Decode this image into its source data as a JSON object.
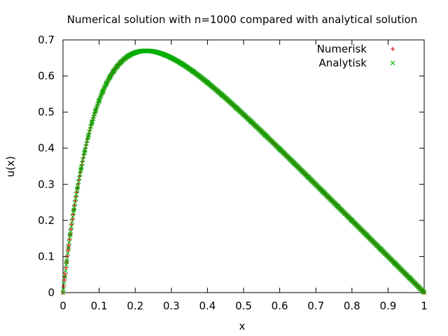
{
  "chart_data": {
    "type": "scatter",
    "title": "Numerical solution with n=1000 compared with analytical solution",
    "xlabel": "x",
    "ylabel": "u(x)",
    "xlim": [
      0,
      1
    ],
    "ylim": [
      0,
      0.7
    ],
    "grid": false,
    "legend_position": "top-right",
    "x_ticks": [
      "0",
      "0.1",
      "0.2",
      "0.3",
      "0.4",
      "0.5",
      "0.6",
      "0.7",
      "0.8",
      "0.9",
      "1"
    ],
    "y_ticks": [
      "0",
      "0.1",
      "0.2",
      "0.3",
      "0.4",
      "0.5",
      "0.6",
      "0.7"
    ],
    "function": "u(x) = 1 - (1 - exp(-10)) x - exp(-10 x)",
    "series": [
      {
        "name": "Numerisk",
        "marker": "+",
        "color": "#cc0000",
        "x": [
          0,
          0.005,
          0.01,
          0.015,
          0.02,
          0.03,
          0.04,
          0.05,
          0.06,
          0.07,
          0.08,
          0.09,
          0.1,
          0.11,
          0.12,
          0.13,
          0.14,
          0.15,
          0.16,
          0.18,
          0.2,
          0.22,
          0.24,
          0.26,
          0.28,
          0.3,
          0.33,
          0.36,
          0.4,
          0.44,
          0.48,
          0.52,
          0.56,
          0.6,
          0.64,
          0.68,
          0.72,
          0.76,
          0.8,
          0.84,
          0.88,
          0.92,
          0.96,
          1.0
        ],
        "y": [
          0,
          0.044,
          0.085,
          0.124,
          0.161,
          0.229,
          0.29,
          0.343,
          0.391,
          0.433,
          0.471,
          0.504,
          0.532,
          0.557,
          0.579,
          0.597,
          0.613,
          0.627,
          0.638,
          0.655,
          0.665,
          0.669,
          0.669,
          0.666,
          0.659,
          0.65,
          0.633,
          0.613,
          0.582,
          0.548,
          0.512,
          0.474,
          0.436,
          0.398,
          0.358,
          0.319,
          0.279,
          0.24,
          0.2,
          0.16,
          0.12,
          0.08,
          0.04,
          0
        ]
      },
      {
        "name": "Analytisk",
        "marker": "x",
        "color": "#00b000",
        "x": [
          0,
          0.005,
          0.01,
          0.015,
          0.02,
          0.03,
          0.04,
          0.05,
          0.06,
          0.07,
          0.08,
          0.09,
          0.1,
          0.11,
          0.12,
          0.13,
          0.14,
          0.15,
          0.16,
          0.18,
          0.2,
          0.22,
          0.24,
          0.26,
          0.28,
          0.3,
          0.33,
          0.36,
          0.4,
          0.44,
          0.48,
          0.52,
          0.56,
          0.6,
          0.64,
          0.68,
          0.72,
          0.76,
          0.8,
          0.84,
          0.88,
          0.92,
          0.96,
          1.0
        ],
        "y": [
          0,
          0.044,
          0.085,
          0.124,
          0.161,
          0.229,
          0.29,
          0.343,
          0.391,
          0.433,
          0.471,
          0.504,
          0.532,
          0.557,
          0.579,
          0.597,
          0.613,
          0.627,
          0.638,
          0.655,
          0.665,
          0.669,
          0.669,
          0.666,
          0.659,
          0.65,
          0.633,
          0.613,
          0.582,
          0.548,
          0.512,
          0.474,
          0.436,
          0.398,
          0.358,
          0.319,
          0.279,
          0.24,
          0.2,
          0.16,
          0.12,
          0.08,
          0.04,
          0
        ]
      }
    ]
  }
}
